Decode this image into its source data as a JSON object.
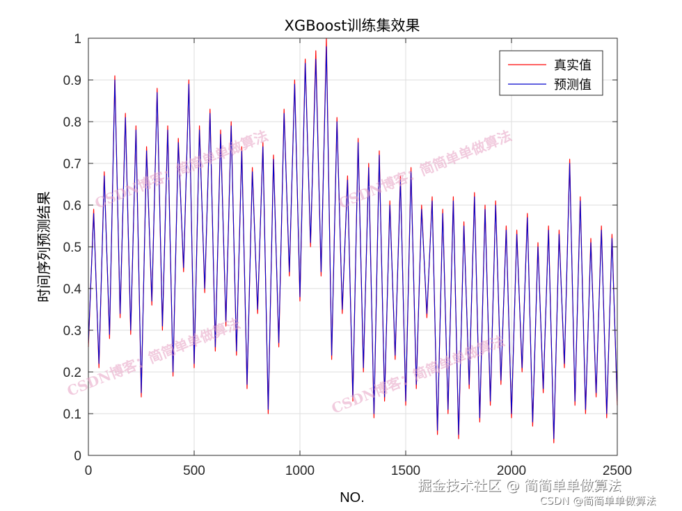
{
  "chart_data": {
    "type": "line",
    "title": "XGBoost训练集效果",
    "xlabel": "NO.",
    "ylabel": "时间序列预测结果",
    "xlim": [
      0,
      2500
    ],
    "ylim": [
      0,
      1
    ],
    "x_ticks": [
      "0",
      "500",
      "1000",
      "1500",
      "2000",
      "2500"
    ],
    "y_ticks": [
      "0",
      "0.1",
      "0.2",
      "0.3",
      "0.4",
      "0.5",
      "0.6",
      "0.7",
      "0.8",
      "0.9",
      "1"
    ],
    "grid": true,
    "legend_position": "top-right",
    "series": [
      {
        "name": "真实值",
        "color": "#ff0000"
      },
      {
        "name": "预测值",
        "color": "#0000cc"
      }
    ],
    "x": [
      0,
      25,
      50,
      75,
      100,
      125,
      150,
      175,
      200,
      225,
      250,
      275,
      300,
      325,
      350,
      375,
      400,
      425,
      450,
      475,
      500,
      525,
      550,
      575,
      600,
      625,
      650,
      675,
      700,
      725,
      750,
      775,
      800,
      825,
      850,
      875,
      900,
      925,
      950,
      975,
      1000,
      1025,
      1050,
      1075,
      1100,
      1125,
      1150,
      1175,
      1200,
      1225,
      1250,
      1275,
      1300,
      1325,
      1350,
      1375,
      1400,
      1425,
      1450,
      1475,
      1500,
      1525,
      1550,
      1575,
      1600,
      1625,
      1650,
      1675,
      1700,
      1725,
      1750,
      1775,
      1800,
      1825,
      1850,
      1875,
      1900,
      1925,
      1950,
      1975,
      2000,
      2025,
      2050,
      2075,
      2100,
      2125,
      2150,
      2175,
      2200,
      2225,
      2250,
      2275,
      2300,
      2325,
      2350,
      2375,
      2400,
      2425,
      2450,
      2475,
      2500
    ],
    "values_true": [
      0.26,
      0.59,
      0.21,
      0.68,
      0.28,
      0.91,
      0.33,
      0.82,
      0.29,
      0.79,
      0.14,
      0.74,
      0.36,
      0.88,
      0.3,
      0.79,
      0.19,
      0.76,
      0.44,
      0.9,
      0.21,
      0.79,
      0.39,
      0.83,
      0.25,
      0.78,
      0.31,
      0.8,
      0.24,
      0.74,
      0.16,
      0.69,
      0.34,
      0.75,
      0.1,
      0.72,
      0.26,
      0.83,
      0.43,
      0.9,
      0.37,
      0.95,
      0.5,
      0.97,
      0.43,
      1.0,
      0.23,
      0.81,
      0.34,
      0.67,
      0.13,
      0.76,
      0.2,
      0.7,
      0.09,
      0.73,
      0.13,
      0.61,
      0.23,
      0.67,
      0.12,
      0.69,
      0.16,
      0.6,
      0.33,
      0.62,
      0.05,
      0.59,
      0.1,
      0.62,
      0.04,
      0.56,
      0.16,
      0.63,
      0.08,
      0.6,
      0.12,
      0.61,
      0.17,
      0.55,
      0.09,
      0.54,
      0.2,
      0.58,
      0.07,
      0.51,
      0.15,
      0.55,
      0.03,
      0.54,
      0.21,
      0.71,
      0.12,
      0.62,
      0.1,
      0.52,
      0.14,
      0.55,
      0.09,
      0.53,
      0.12
    ],
    "values_pred": [
      0.27,
      0.58,
      0.22,
      0.67,
      0.29,
      0.9,
      0.34,
      0.81,
      0.3,
      0.78,
      0.15,
      0.73,
      0.37,
      0.87,
      0.31,
      0.78,
      0.2,
      0.75,
      0.45,
      0.89,
      0.22,
      0.78,
      0.4,
      0.82,
      0.26,
      0.77,
      0.32,
      0.79,
      0.25,
      0.73,
      0.17,
      0.68,
      0.35,
      0.74,
      0.11,
      0.71,
      0.27,
      0.82,
      0.44,
      0.89,
      0.38,
      0.94,
      0.51,
      0.95,
      0.44,
      0.98,
      0.24,
      0.8,
      0.35,
      0.66,
      0.14,
      0.75,
      0.21,
      0.69,
      0.1,
      0.72,
      0.14,
      0.6,
      0.24,
      0.66,
      0.13,
      0.68,
      0.17,
      0.59,
      0.34,
      0.61,
      0.06,
      0.58,
      0.11,
      0.61,
      0.05,
      0.55,
      0.17,
      0.62,
      0.09,
      0.59,
      0.13,
      0.6,
      0.18,
      0.54,
      0.1,
      0.53,
      0.21,
      0.57,
      0.08,
      0.5,
      0.16,
      0.54,
      0.04,
      0.53,
      0.22,
      0.7,
      0.13,
      0.61,
      0.11,
      0.51,
      0.15,
      0.54,
      0.1,
      0.52,
      0.13
    ]
  },
  "watermark_text": "CSDN博客：简简单单做算法",
  "credit": {
    "main": "掘金技术社区 @ 简简单单做算法",
    "sub": "CSDN @简简单单做算法"
  }
}
